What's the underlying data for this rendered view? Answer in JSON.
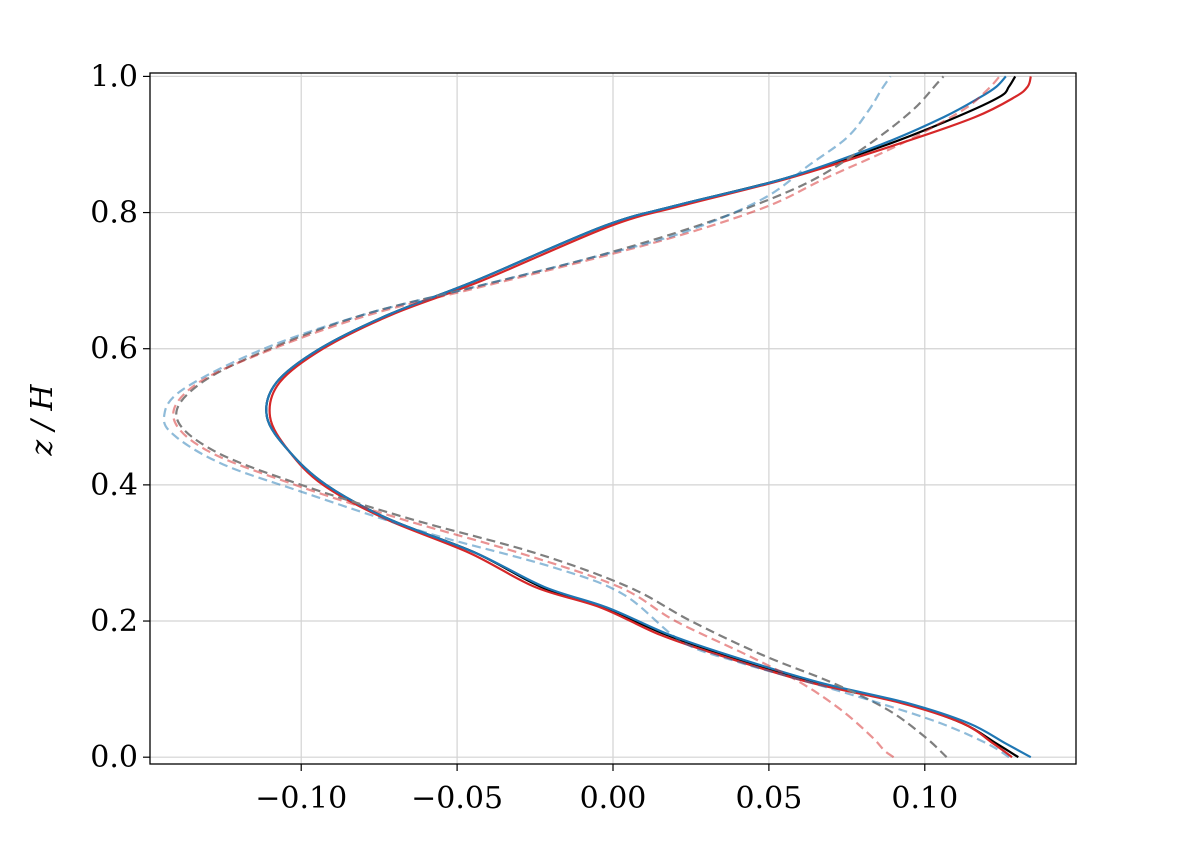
{
  "chart_data": {
    "type": "line",
    "title": "",
    "xlabel": "",
    "ylabel": "z / H",
    "xlim": [
      -0.1485,
      0.1485
    ],
    "ylim": [
      -0.01,
      1.005
    ],
    "x_ticks": [
      -0.1,
      -0.05,
      0.0,
      0.05,
      0.1
    ],
    "x_tick_labels": [
      "−0.10",
      "−0.05",
      "0.00",
      "0.05",
      "0.10"
    ],
    "y_ticks": [
      0.0,
      0.2,
      0.4,
      0.6,
      0.8,
      1.0
    ],
    "y_tick_labels": [
      "0.0",
      "0.2",
      "0.4",
      "0.6",
      "0.8",
      "1.0"
    ],
    "grid": true,
    "legend": "none",
    "series": [
      {
        "color": "#000000",
        "dash": "solid",
        "opacity": 1.0,
        "width": 2.2,
        "points": [
          [
            0.13,
            0.0
          ],
          [
            0.123,
            0.02
          ],
          [
            0.112,
            0.05
          ],
          [
            0.093,
            0.08
          ],
          [
            0.065,
            0.11
          ],
          [
            0.036,
            0.15
          ],
          [
            0.017,
            0.18
          ],
          [
            -0.003,
            0.22
          ],
          [
            -0.023,
            0.25
          ],
          [
            -0.044,
            0.3
          ],
          [
            -0.072,
            0.35
          ],
          [
            -0.092,
            0.4
          ],
          [
            -0.104,
            0.45
          ],
          [
            -0.111,
            0.5
          ],
          [
            -0.108,
            0.55
          ],
          [
            -0.094,
            0.6
          ],
          [
            -0.072,
            0.65
          ],
          [
            -0.044,
            0.7
          ],
          [
            -0.003,
            0.78
          ],
          [
            0.02,
            0.81
          ],
          [
            0.055,
            0.85
          ],
          [
            0.088,
            0.9
          ],
          [
            0.11,
            0.94
          ],
          [
            0.124,
            0.97
          ],
          [
            0.127,
            0.985
          ],
          [
            0.129,
            1.0
          ]
        ]
      },
      {
        "color": "#d62728",
        "dash": "solid",
        "opacity": 1.0,
        "width": 2.2,
        "points": [
          [
            0.128,
            0.0
          ],
          [
            0.122,
            0.02
          ],
          [
            0.112,
            0.05
          ],
          [
            0.092,
            0.08
          ],
          [
            0.063,
            0.11
          ],
          [
            0.034,
            0.15
          ],
          [
            0.015,
            0.18
          ],
          [
            -0.004,
            0.22
          ],
          [
            -0.025,
            0.25
          ],
          [
            -0.046,
            0.3
          ],
          [
            -0.073,
            0.35
          ],
          [
            -0.093,
            0.4
          ],
          [
            -0.104,
            0.45
          ],
          [
            -0.11,
            0.5
          ],
          [
            -0.107,
            0.55
          ],
          [
            -0.093,
            0.6
          ],
          [
            -0.071,
            0.65
          ],
          [
            -0.042,
            0.7
          ],
          [
            -0.001,
            0.78
          ],
          [
            0.022,
            0.81
          ],
          [
            0.056,
            0.85
          ],
          [
            0.091,
            0.9
          ],
          [
            0.116,
            0.94
          ],
          [
            0.129,
            0.97
          ],
          [
            0.133,
            0.985
          ],
          [
            0.134,
            1.0
          ]
        ]
      },
      {
        "color": "#1f77b4",
        "dash": "solid",
        "opacity": 1.0,
        "width": 2.2,
        "points": [
          [
            0.134,
            0.0
          ],
          [
            0.126,
            0.02
          ],
          [
            0.114,
            0.05
          ],
          [
            0.094,
            0.08
          ],
          [
            0.066,
            0.11
          ],
          [
            0.037,
            0.15
          ],
          [
            0.018,
            0.18
          ],
          [
            -0.002,
            0.22
          ],
          [
            -0.022,
            0.25
          ],
          [
            -0.044,
            0.3
          ],
          [
            -0.072,
            0.35
          ],
          [
            -0.092,
            0.4
          ],
          [
            -0.104,
            0.45
          ],
          [
            -0.111,
            0.5
          ],
          [
            -0.108,
            0.55
          ],
          [
            -0.094,
            0.6
          ],
          [
            -0.072,
            0.65
          ],
          [
            -0.044,
            0.7
          ],
          [
            -0.003,
            0.78
          ],
          [
            0.02,
            0.81
          ],
          [
            0.055,
            0.85
          ],
          [
            0.086,
            0.9
          ],
          [
            0.106,
            0.94
          ],
          [
            0.118,
            0.97
          ],
          [
            0.123,
            0.985
          ],
          [
            0.126,
            1.0
          ]
        ]
      },
      {
        "color": "#7f7f7f",
        "dash": "dashed",
        "opacity": 1.0,
        "width": 2.2,
        "points": [
          [
            0.107,
            0.0
          ],
          [
            0.1,
            0.03
          ],
          [
            0.088,
            0.07
          ],
          [
            0.07,
            0.11
          ],
          [
            0.048,
            0.15
          ],
          [
            0.025,
            0.2
          ],
          [
            0.005,
            0.25
          ],
          [
            -0.025,
            0.3
          ],
          [
            -0.065,
            0.35
          ],
          [
            -0.1,
            0.4
          ],
          [
            -0.128,
            0.45
          ],
          [
            -0.14,
            0.5
          ],
          [
            -0.132,
            0.55
          ],
          [
            -0.11,
            0.6
          ],
          [
            -0.08,
            0.65
          ],
          [
            -0.045,
            0.69
          ],
          [
            -0.01,
            0.73
          ],
          [
            0.02,
            0.77
          ],
          [
            0.045,
            0.81
          ],
          [
            0.065,
            0.85
          ],
          [
            0.082,
            0.9
          ],
          [
            0.096,
            0.95
          ],
          [
            0.104,
            0.99
          ],
          [
            0.106,
            1.0
          ]
        ]
      },
      {
        "color": "#d62728",
        "dash": "dashed",
        "opacity": 0.5,
        "width": 2.2,
        "points": [
          [
            0.09,
            0.0
          ],
          [
            0.087,
            0.01
          ],
          [
            0.083,
            0.03
          ],
          [
            0.073,
            0.07
          ],
          [
            0.06,
            0.11
          ],
          [
            0.043,
            0.15
          ],
          [
            0.02,
            0.2
          ],
          [
            0.002,
            0.25
          ],
          [
            -0.03,
            0.3
          ],
          [
            -0.068,
            0.35
          ],
          [
            -0.102,
            0.4
          ],
          [
            -0.13,
            0.45
          ],
          [
            -0.141,
            0.5
          ],
          [
            -0.133,
            0.55
          ],
          [
            -0.109,
            0.6
          ],
          [
            -0.078,
            0.65
          ],
          [
            -0.043,
            0.69
          ],
          [
            -0.008,
            0.73
          ],
          [
            0.024,
            0.77
          ],
          [
            0.05,
            0.81
          ],
          [
            0.068,
            0.85
          ],
          [
            0.092,
            0.9
          ],
          [
            0.112,
            0.95
          ],
          [
            0.12,
            0.98
          ],
          [
            0.124,
            1.0
          ]
        ]
      },
      {
        "color": "#1f77b4",
        "dash": "dashed",
        "opacity": 0.5,
        "width": 2.2,
        "points": [
          [
            0.127,
            0.0
          ],
          [
            0.12,
            0.02
          ],
          [
            0.105,
            0.05
          ],
          [
            0.085,
            0.08
          ],
          [
            0.063,
            0.11
          ],
          [
            0.04,
            0.14
          ],
          [
            0.022,
            0.17
          ],
          [
            0.003,
            0.24
          ],
          [
            -0.02,
            0.28
          ],
          [
            -0.06,
            0.33
          ],
          [
            -0.1,
            0.39
          ],
          [
            -0.125,
            0.43
          ],
          [
            -0.14,
            0.47
          ],
          [
            -0.144,
            0.5
          ],
          [
            -0.138,
            0.54
          ],
          [
            -0.112,
            0.6
          ],
          [
            -0.08,
            0.65
          ],
          [
            -0.045,
            0.69
          ],
          [
            -0.01,
            0.73
          ],
          [
            0.022,
            0.77
          ],
          [
            0.048,
            0.82
          ],
          [
            0.063,
            0.87
          ],
          [
            0.075,
            0.91
          ],
          [
            0.082,
            0.95
          ],
          [
            0.086,
            0.98
          ],
          [
            0.089,
            1.0
          ]
        ]
      }
    ]
  }
}
